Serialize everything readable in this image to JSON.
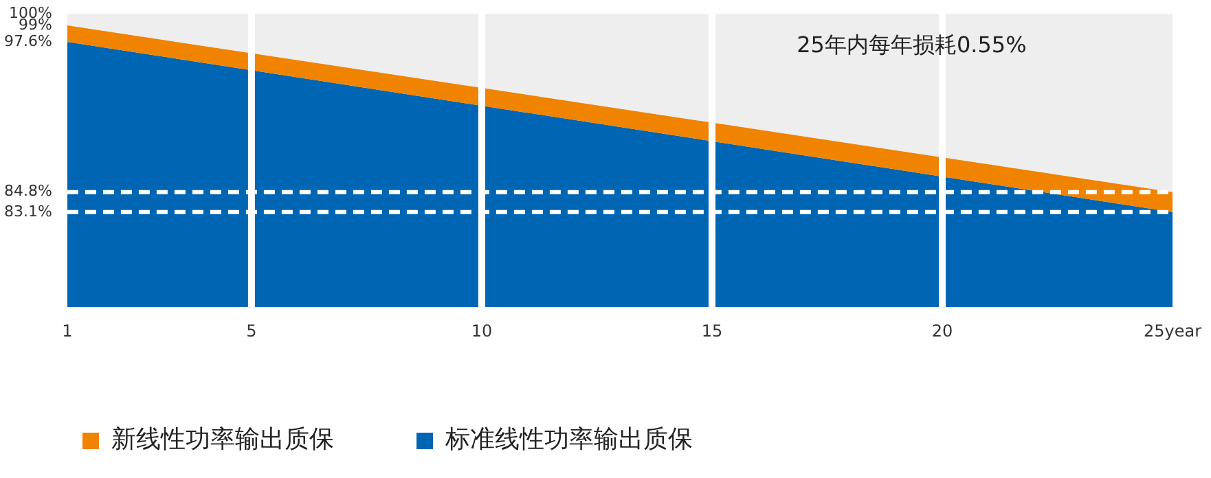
{
  "chart_data": {
    "type": "area",
    "annotations": [
      "25年内每年损耗0.55%"
    ],
    "x": [
      1,
      25
    ],
    "xlim": [
      1,
      25
    ],
    "xticks": [
      1,
      5,
      10,
      15,
      20,
      {
        "value": 25,
        "label": "25year"
      }
    ],
    "ylim": [
      75,
      100
    ],
    "yticks": [
      {
        "value": 100,
        "label": "100%"
      },
      {
        "value": 99,
        "label": "99%"
      },
      {
        "value": 97.6,
        "label": "97.6%"
      },
      {
        "value": 84.8,
        "label": "84.8%"
      },
      {
        "value": 83.1,
        "label": "83.1%"
      }
    ],
    "series": [
      {
        "name": "新线性功率输出质保",
        "color": "#f08300",
        "values": [
          99,
          84.8
        ]
      },
      {
        "name": "标准线性功率输出质保",
        "color": "#0066b3",
        "values": [
          97.6,
          83.1
        ]
      }
    ],
    "ref_lines": [
      {
        "axis": "y",
        "value": 84.8,
        "color": "#ffffff",
        "line_style": "dashed"
      },
      {
        "axis": "y",
        "value": 83.1,
        "color": "#ffffff",
        "line_style": "dashed"
      }
    ],
    "grid": "x",
    "legend": "bottom left"
  }
}
